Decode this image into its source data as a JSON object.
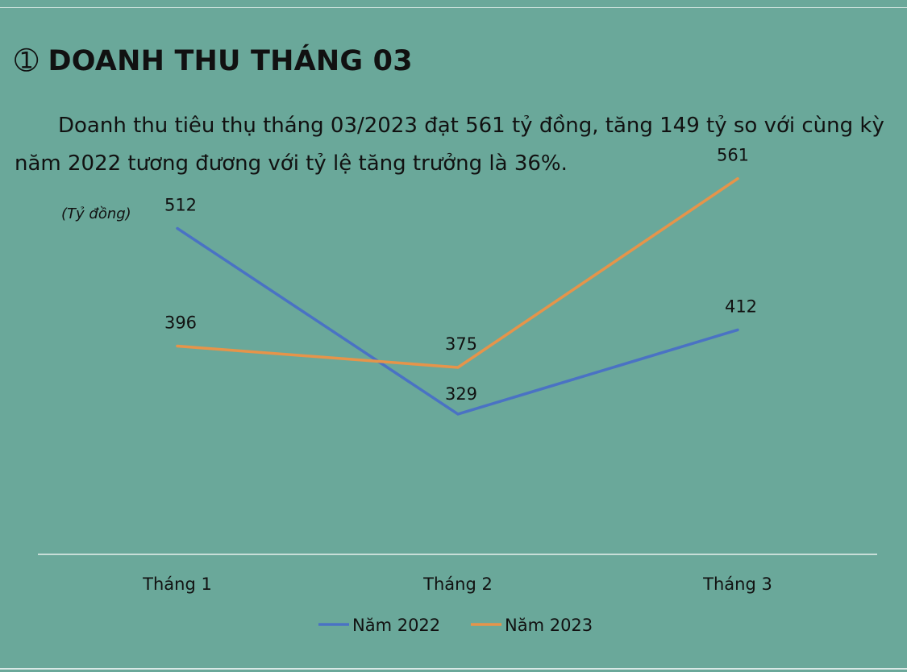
{
  "heading": {
    "marker": "➀",
    "title": "DOANH THU THÁNG 03"
  },
  "paragraph": "Doanh thu tiêu thụ tháng 03/2023 đạt  561 tỷ đồng, tăng 149 tỷ so với cùng kỳ năm 2022 tương đương với tỷ lệ tăng trưởng là 36%.",
  "colors": {
    "background": "#6aa89a",
    "series_2022": "#4a72c4",
    "series_2023": "#e6944a",
    "axis": "#e8efec"
  },
  "chart_data": {
    "type": "line",
    "unit_label": "(Tỷ đồng)",
    "categories": [
      "Tháng 1",
      "Tháng 2",
      "Tháng 3"
    ],
    "series": [
      {
        "name": "Năm 2022",
        "values": [
          512,
          329,
          412
        ],
        "color": "#4a72c4"
      },
      {
        "name": "Năm 2023",
        "values": [
          396,
          375,
          561
        ],
        "color": "#e6944a"
      }
    ],
    "ylim": [
      140,
      610
    ],
    "grid": false,
    "legend_position": "bottom"
  }
}
